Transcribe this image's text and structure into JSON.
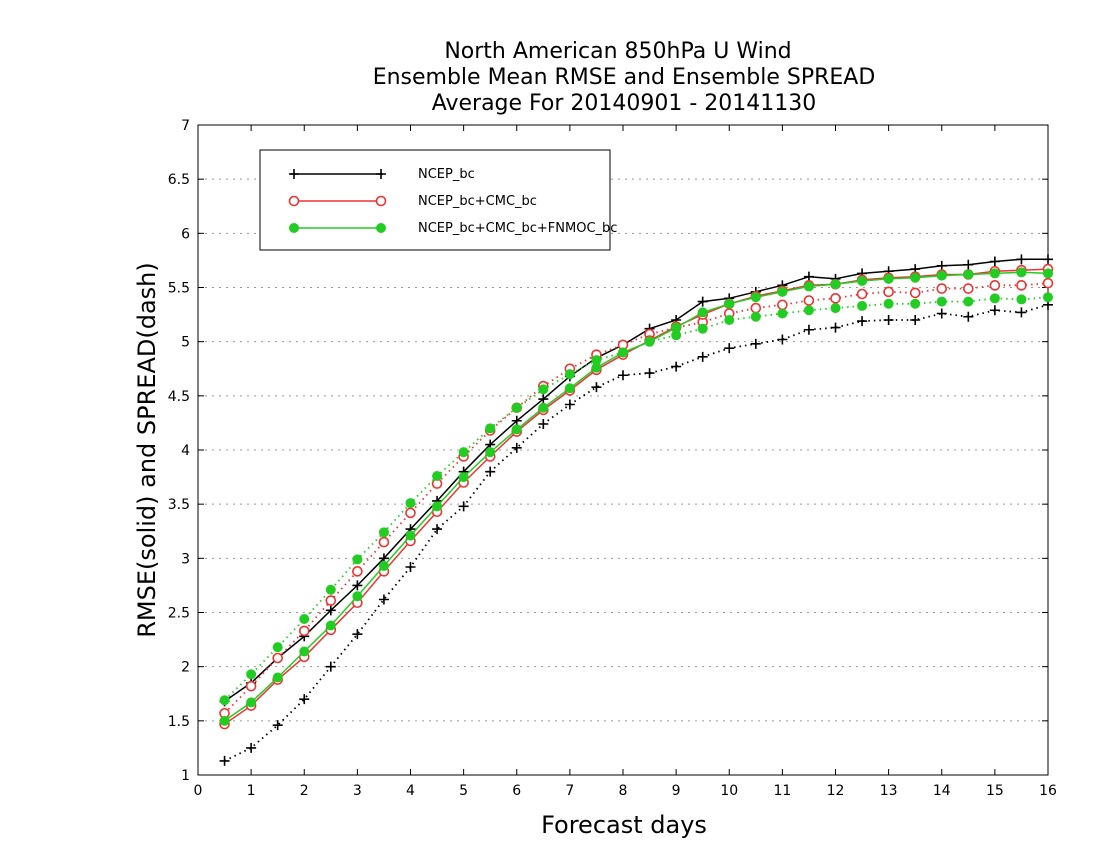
{
  "chart_data": {
    "type": "line",
    "title": [
      "North American 850hPa U Wind",
      "Ensemble Mean RMSE and Ensemble SPREAD",
      "Average For 20140901 - 20141130"
    ],
    "xlabel": "Forecast days",
    "ylabel": "RMSE(solid) and SPREAD(dash)",
    "xlim": [
      0,
      16
    ],
    "ylim": [
      1,
      7
    ],
    "xticks": [
      "0",
      "1",
      "2",
      "3",
      "4",
      "5",
      "6",
      "7",
      "8",
      "9",
      "10",
      "11",
      "12",
      "13",
      "14",
      "15",
      "16"
    ],
    "yticks": [
      "1",
      "1.5",
      "2",
      "2.5",
      "3",
      "3.5",
      "4",
      "4.5",
      "5",
      "5.5",
      "6",
      "6.5",
      "7"
    ],
    "grid": true,
    "legend_position": "top-left",
    "x": [
      0.5,
      1,
      1.5,
      2,
      2.5,
      3,
      3.5,
      4,
      4.5,
      5,
      5.5,
      6,
      6.5,
      7,
      7.5,
      8,
      8.5,
      9,
      9.5,
      10,
      10.5,
      11,
      11.5,
      12,
      12.5,
      13,
      13.5,
      14,
      14.5,
      15,
      15.5,
      16
    ],
    "series": [
      {
        "name": "NCEP_bc",
        "color": "#000000",
        "marker": "plus",
        "rmse": [
          1.68,
          1.85,
          2.08,
          2.28,
          2.52,
          2.75,
          3.0,
          3.27,
          3.53,
          3.8,
          4.05,
          4.27,
          4.47,
          4.68,
          4.85,
          4.97,
          5.12,
          5.2,
          5.37,
          5.4,
          5.46,
          5.52,
          5.6,
          5.58,
          5.63,
          5.65,
          5.67,
          5.7,
          5.71,
          5.74,
          5.76,
          5.76
        ],
        "spread": [
          1.13,
          1.25,
          1.46,
          1.7,
          2.0,
          2.3,
          2.62,
          2.92,
          3.27,
          3.48,
          3.8,
          4.02,
          4.24,
          4.42,
          4.58,
          4.69,
          4.71,
          4.77,
          4.86,
          4.94,
          4.98,
          5.02,
          5.11,
          5.13,
          5.19,
          5.2,
          5.2,
          5.26,
          5.23,
          5.29,
          5.27,
          5.34
        ]
      },
      {
        "name": "NCEP_bc+CMC_bc",
        "color": "#ee3333",
        "marker": "open-circle",
        "rmse": [
          1.47,
          1.64,
          1.88,
          2.09,
          2.34,
          2.59,
          2.88,
          3.16,
          3.43,
          3.7,
          3.94,
          4.17,
          4.37,
          4.55,
          4.74,
          4.88,
          5.01,
          5.14,
          5.25,
          5.35,
          5.42,
          5.47,
          5.52,
          5.53,
          5.57,
          5.59,
          5.6,
          5.62,
          5.62,
          5.65,
          5.66,
          5.67
        ],
        "spread": [
          1.57,
          1.82,
          2.08,
          2.33,
          2.61,
          2.88,
          3.15,
          3.42,
          3.69,
          3.94,
          4.18,
          4.39,
          4.59,
          4.75,
          4.88,
          4.97,
          5.07,
          5.13,
          5.18,
          5.26,
          5.31,
          5.34,
          5.38,
          5.4,
          5.44,
          5.46,
          5.45,
          5.49,
          5.49,
          5.52,
          5.52,
          5.54
        ]
      },
      {
        "name": "NCEP_bc+CMC_bc+FNMOC_bc",
        "color": "#22cc22",
        "marker": "filled-circle",
        "rmse": [
          1.5,
          1.67,
          1.9,
          2.14,
          2.38,
          2.65,
          2.93,
          3.21,
          3.48,
          3.75,
          3.98,
          4.19,
          4.39,
          4.57,
          4.76,
          4.9,
          5.0,
          5.13,
          5.27,
          5.35,
          5.41,
          5.46,
          5.51,
          5.53,
          5.56,
          5.58,
          5.59,
          5.61,
          5.62,
          5.63,
          5.64,
          5.63
        ],
        "spread": [
          1.69,
          1.93,
          2.18,
          2.44,
          2.71,
          2.99,
          3.24,
          3.51,
          3.76,
          3.98,
          4.2,
          4.39,
          4.56,
          4.7,
          4.83,
          4.9,
          5.0,
          5.06,
          5.12,
          5.2,
          5.23,
          5.26,
          5.29,
          5.31,
          5.33,
          5.35,
          5.35,
          5.37,
          5.37,
          5.4,
          5.39,
          5.41
        ]
      }
    ]
  }
}
